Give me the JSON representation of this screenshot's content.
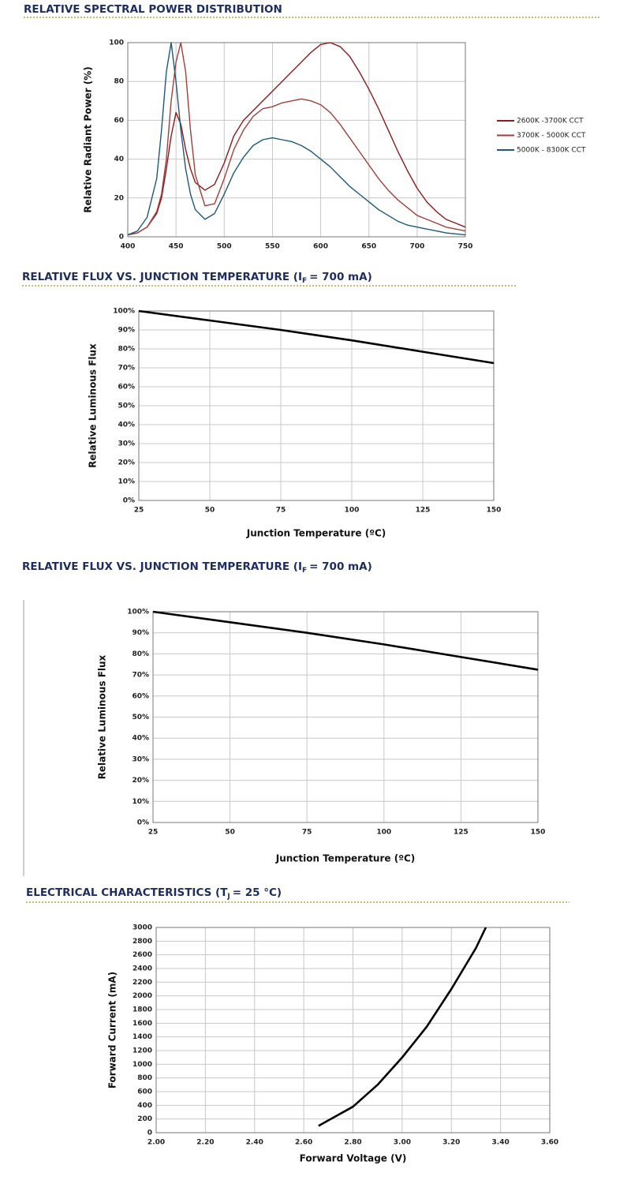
{
  "chart_data": [
    {
      "type": "line",
      "title": "RELATIVE SPECTRAL POWER DISTRIBUTION",
      "ylabel": "Relative Radiant Power (%)",
      "x": [
        400,
        410,
        420,
        430,
        435,
        440,
        445,
        450,
        455,
        460,
        465,
        470,
        480,
        490,
        500,
        510,
        520,
        530,
        540,
        550,
        560,
        570,
        580,
        590,
        600,
        610,
        620,
        630,
        640,
        650,
        660,
        670,
        680,
        690,
        700,
        710,
        720,
        730,
        740,
        750
      ],
      "series": [
        {
          "name": "2600K -3700K CCT",
          "color": "#8b1c1c",
          "values": [
            1,
            2,
            5,
            12,
            20,
            35,
            52,
            64,
            58,
            45,
            35,
            28,
            24,
            27,
            38,
            52,
            60,
            65,
            70,
            75,
            80,
            85,
            90,
            95,
            99,
            100,
            98,
            93,
            85,
            76,
            66,
            55,
            44,
            34,
            25,
            18,
            13,
            9,
            7,
            5
          ]
        },
        {
          "name": "3700K - 5000K CCT",
          "color": "#a0403c",
          "values": [
            1,
            2,
            5,
            13,
            22,
            40,
            70,
            90,
            100,
            85,
            55,
            32,
            16,
            17,
            30,
            45,
            55,
            62,
            66,
            67,
            69,
            70,
            71,
            70,
            68,
            64,
            58,
            51,
            44,
            37,
            30,
            24,
            19,
            15,
            11,
            9,
            7,
            5,
            4,
            3
          ]
        },
        {
          "name": "5000K - 8300K CCT",
          "color": "#1f5878",
          "values": [
            1,
            3,
            10,
            30,
            55,
            85,
            100,
            80,
            55,
            35,
            22,
            14,
            9,
            12,
            22,
            33,
            41,
            47,
            50,
            51,
            50,
            49,
            47,
            44,
            40,
            36,
            31,
            26,
            22,
            18,
            14,
            11,
            8,
            6,
            5,
            4,
            3,
            2,
            1.5,
            1
          ]
        }
      ],
      "xlim": [
        400,
        750
      ],
      "xticks": [
        400,
        450,
        500,
        550,
        600,
        650,
        700,
        750
      ],
      "ylim": [
        0,
        100
      ],
      "yticks": [
        0,
        20,
        40,
        60,
        80,
        100
      ],
      "grid": true
    },
    {
      "type": "line",
      "title": "RELATIVE FLUX VS. JUNCTION TEMPERATURE (I",
      "title_subscript": "F",
      "title_suffix": "= 700 mA)",
      "xlabel": "Junction Temperature (ºC)",
      "ylabel": "Relative Luminous Flux",
      "x": [
        25,
        50,
        75,
        100,
        125,
        150
      ],
      "values": [
        100,
        95,
        90,
        84.5,
        78.5,
        72.5
      ],
      "color": "#000000",
      "xlim": [
        25,
        150
      ],
      "xticks": [
        25,
        50,
        75,
        100,
        125,
        150
      ],
      "ylim": [
        0,
        100
      ],
      "yticks": [
        {
          "value": 0,
          "label": "0%"
        },
        {
          "value": 10,
          "label": "10%"
        },
        {
          "value": 20,
          "label": "20%"
        },
        {
          "value": 30,
          "label": "30%"
        },
        {
          "value": 40,
          "label": "40%"
        },
        {
          "value": 50,
          "label": "50%"
        },
        {
          "value": 60,
          "label": "60%"
        },
        {
          "value": 70,
          "label": "70%"
        },
        {
          "value": 80,
          "label": "80%"
        },
        {
          "value": 90,
          "label": "90%"
        },
        {
          "value": 100,
          "label": "100%"
        }
      ],
      "grid": true
    },
    {
      "type": "line",
      "title": "RELATIVE FLUX VS. JUNCTION TEMPERATURE (I",
      "title_subscript": "F",
      "title_suffix": "= 700 mA)",
      "xlabel": "Junction Temperature (ºC)",
      "ylabel": "Relative Luminous Flux",
      "x": [
        25,
        50,
        75,
        100,
        125,
        150
      ],
      "values": [
        100,
        95,
        90,
        84.5,
        78.5,
        72.5
      ],
      "color": "#000000",
      "xlim": [
        25,
        150
      ],
      "xticks": [
        25,
        50,
        75,
        100,
        125,
        150
      ],
      "ylim": [
        0,
        100
      ],
      "yticks": [
        {
          "value": 0,
          "label": "0%"
        },
        {
          "value": 10,
          "label": "10%"
        },
        {
          "value": 20,
          "label": "20%"
        },
        {
          "value": 30,
          "label": "30%"
        },
        {
          "value": 40,
          "label": "40%"
        },
        {
          "value": 50,
          "label": "50%"
        },
        {
          "value": 60,
          "label": "60%"
        },
        {
          "value": 70,
          "label": "70%"
        },
        {
          "value": 80,
          "label": "80%"
        },
        {
          "value": 90,
          "label": "90%"
        },
        {
          "value": 100,
          "label": "100%"
        }
      ],
      "grid": true
    },
    {
      "type": "line",
      "title": "ELECTRICAL CHARACTERISTICS (T",
      "title_subscript": "J",
      "title_suffix": "= 25 °C)",
      "xlabel": "Forward Voltage (V)",
      "ylabel": "Forward Current (mA)",
      "x": [
        2.66,
        2.7,
        2.8,
        2.9,
        3.0,
        3.1,
        3.2,
        3.3,
        3.34
      ],
      "values": [
        100,
        180,
        380,
        700,
        1100,
        1550,
        2100,
        2700,
        3000
      ],
      "color": "#000000",
      "xlim": [
        2.0,
        3.6
      ],
      "xticks": [
        {
          "value": 2.0,
          "label": "2.00"
        },
        {
          "value": 2.2,
          "label": "2.20"
        },
        {
          "value": 2.4,
          "label": "2.40"
        },
        {
          "value": 2.6,
          "label": "2.60"
        },
        {
          "value": 2.8,
          "label": "2.80"
        },
        {
          "value": 3.0,
          "label": "3.00"
        },
        {
          "value": 3.2,
          "label": "3.20"
        },
        {
          "value": 3.4,
          "label": "3.40"
        },
        {
          "value": 3.6,
          "label": "3.60"
        }
      ],
      "ylim": [
        0,
        3000
      ],
      "yticks": [
        0,
        200,
        400,
        600,
        800,
        1000,
        1200,
        1400,
        1600,
        1800,
        2000,
        2200,
        2400,
        2600,
        2800,
        3000
      ],
      "grid": true
    }
  ]
}
